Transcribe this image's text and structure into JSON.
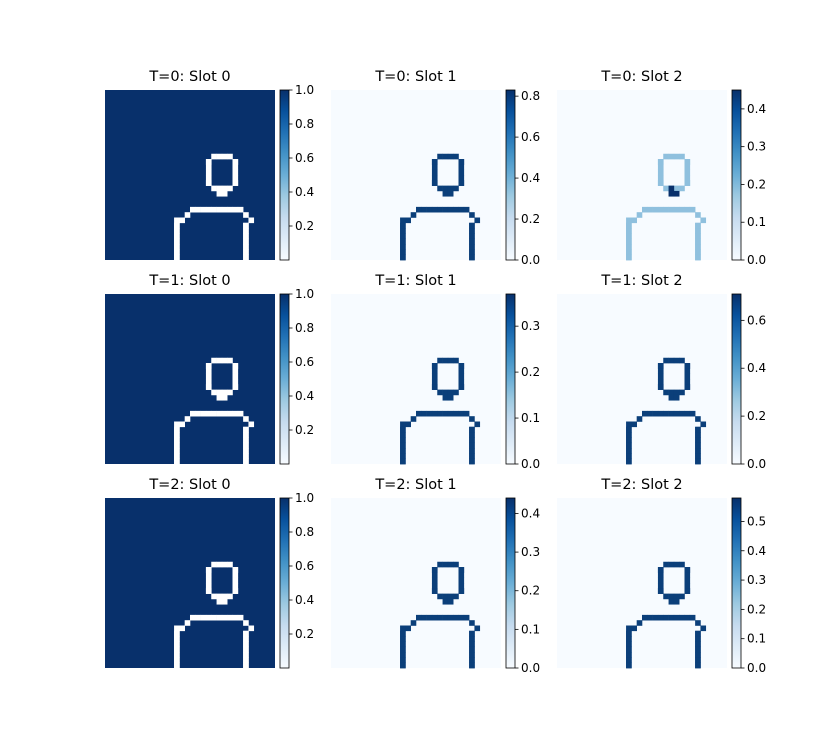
{
  "chart_data": {
    "type": "heatmap",
    "figure": "3x3 grid of attention/mask heatmaps (Blues colormap), each with a colorbar",
    "colormap": "Blues",
    "axes_visible": false,
    "panels": [
      {
        "title": "T=0: Slot 0",
        "colorbar": {
          "min": 0.0,
          "max": 1.0,
          "ticks": [
            "0.2",
            "0.4",
            "0.6",
            "0.8",
            "1.0"
          ]
        }
      },
      {
        "title": "T=0: Slot 1",
        "colorbar": {
          "min": 0.0,
          "max": 0.83,
          "ticks": [
            "0.0",
            "0.2",
            "0.4",
            "0.6",
            "0.8"
          ]
        }
      },
      {
        "title": "T=0: Slot 2",
        "colorbar": {
          "min": 0.0,
          "max": 0.45,
          "ticks": [
            "0.0",
            "0.1",
            "0.2",
            "0.3",
            "0.4"
          ]
        }
      },
      {
        "title": "T=1: Slot 0",
        "colorbar": {
          "min": 0.0,
          "max": 1.0,
          "ticks": [
            "0.2",
            "0.4",
            "0.6",
            "0.8",
            "1.0"
          ]
        }
      },
      {
        "title": "T=1: Slot 1",
        "colorbar": {
          "min": 0.0,
          "max": 0.37,
          "ticks": [
            "0.0",
            "0.1",
            "0.2",
            "0.3"
          ]
        }
      },
      {
        "title": "T=1: Slot 2",
        "colorbar": {
          "min": 0.0,
          "max": 0.71,
          "ticks": [
            "0.0",
            "0.2",
            "0.4",
            "0.6"
          ]
        }
      },
      {
        "title": "T=2: Slot 0",
        "colorbar": {
          "min": 0.0,
          "max": 1.0,
          "ticks": [
            "0.2",
            "0.4",
            "0.6",
            "0.8",
            "1.0"
          ]
        }
      },
      {
        "title": "T=2: Slot 1",
        "colorbar": {
          "min": 0.0,
          "max": 0.44,
          "ticks": [
            "0.0",
            "0.1",
            "0.2",
            "0.3",
            "0.4"
          ]
        }
      },
      {
        "title": "T=2: Slot 2",
        "colorbar": {
          "min": 0.0,
          "max": 0.58,
          "ticks": [
            "0.0",
            "0.1",
            "0.2",
            "0.3",
            "0.4",
            "0.5"
          ]
        }
      }
    ]
  }
}
